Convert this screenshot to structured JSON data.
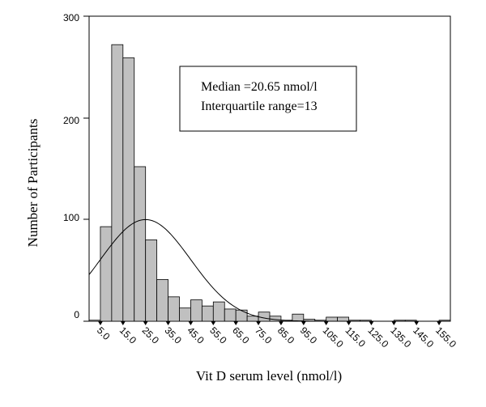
{
  "chart_data": {
    "type": "bar",
    "title": "",
    "xlabel": "Vit D serum level (nmol/l)",
    "ylabel": "Number of  Participants",
    "ylim": [
      0,
      300
    ],
    "y_ticks": [
      "300",
      "200",
      "100",
      "0"
    ],
    "x_tick_labels": [
      "5.0",
      "15.0",
      "25.0",
      "35.0",
      "45.0",
      "55.0",
      "65.0",
      "75.0",
      "85.0",
      "95.0",
      "105.0",
      "115.0",
      "125.0",
      "135.0",
      "145.0",
      "155.0"
    ],
    "bins": [
      {
        "center": 2.5,
        "count": 1
      },
      {
        "center": 7.5,
        "count": 93
      },
      {
        "center": 12.5,
        "count": 272
      },
      {
        "center": 17.5,
        "count": 259
      },
      {
        "center": 22.5,
        "count": 152
      },
      {
        "center": 27.5,
        "count": 80
      },
      {
        "center": 32.5,
        "count": 41
      },
      {
        "center": 37.5,
        "count": 24
      },
      {
        "center": 42.5,
        "count": 13
      },
      {
        "center": 47.5,
        "count": 21
      },
      {
        "center": 52.5,
        "count": 15
      },
      {
        "center": 57.5,
        "count": 19
      },
      {
        "center": 62.5,
        "count": 12
      },
      {
        "center": 67.5,
        "count": 11
      },
      {
        "center": 72.5,
        "count": 5
      },
      {
        "center": 77.5,
        "count": 9
      },
      {
        "center": 82.5,
        "count": 5
      },
      {
        "center": 87.5,
        "count": 1
      },
      {
        "center": 92.5,
        "count": 7
      },
      {
        "center": 97.5,
        "count": 2
      },
      {
        "center": 102.5,
        "count": 1
      },
      {
        "center": 107.5,
        "count": 4
      },
      {
        "center": 112.5,
        "count": 4
      },
      {
        "center": 117.5,
        "count": 1
      },
      {
        "center": 122.5,
        "count": 1
      },
      {
        "center": 137.5,
        "count": 1
      },
      {
        "center": 142.5,
        "count": 1
      },
      {
        "center": 157.5,
        "count": 1
      }
    ],
    "normal_curve": {
      "mean": 25,
      "sd": 20,
      "peak": 100
    },
    "annotation": {
      "line1": "Median =20.65 nmol/l",
      "line2": "Interquartile range=13"
    },
    "colors": {
      "bar_fill": "#c0c0c0",
      "bar_stroke": "#000000",
      "curve": "#000000"
    }
  }
}
